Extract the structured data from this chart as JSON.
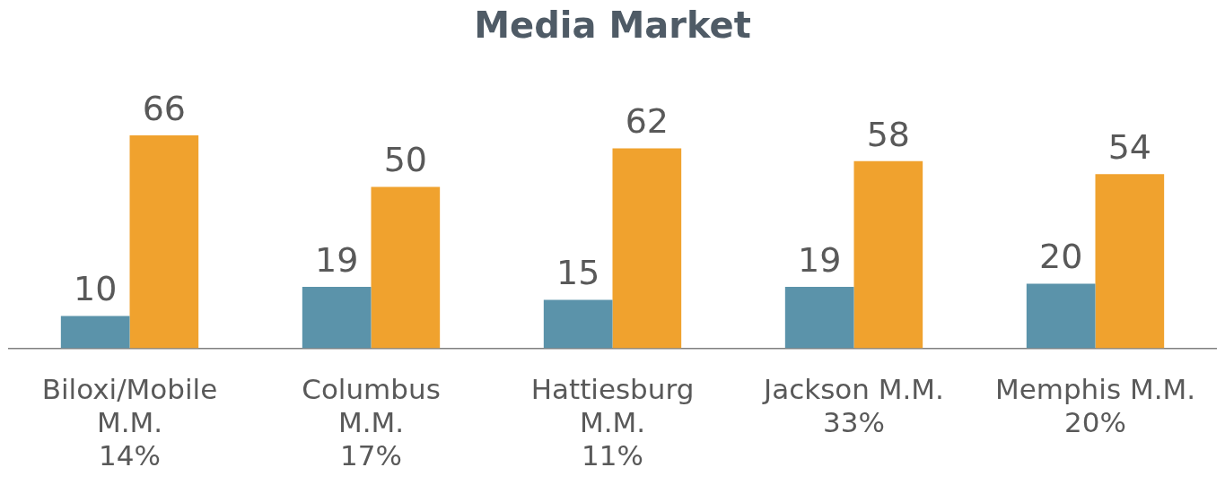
{
  "chart_data": {
    "type": "bar",
    "title": "Media Market",
    "categories": [
      "Biloxi/Mobile\nM.M.\n14%",
      "Columbus\nM.M.\n17%",
      "Hattiesburg\nM.M.\n11%",
      "Jackson M.M.\n33%",
      "Memphis M.M.\n20%"
    ],
    "series": [
      {
        "color": "#5b93aa",
        "values": [
          10,
          19,
          15,
          19,
          20
        ]
      },
      {
        "color": "#f0a22e",
        "values": [
          66,
          50,
          62,
          58,
          54
        ]
      }
    ],
    "data_labels": true,
    "grid": false,
    "legend": false
  }
}
